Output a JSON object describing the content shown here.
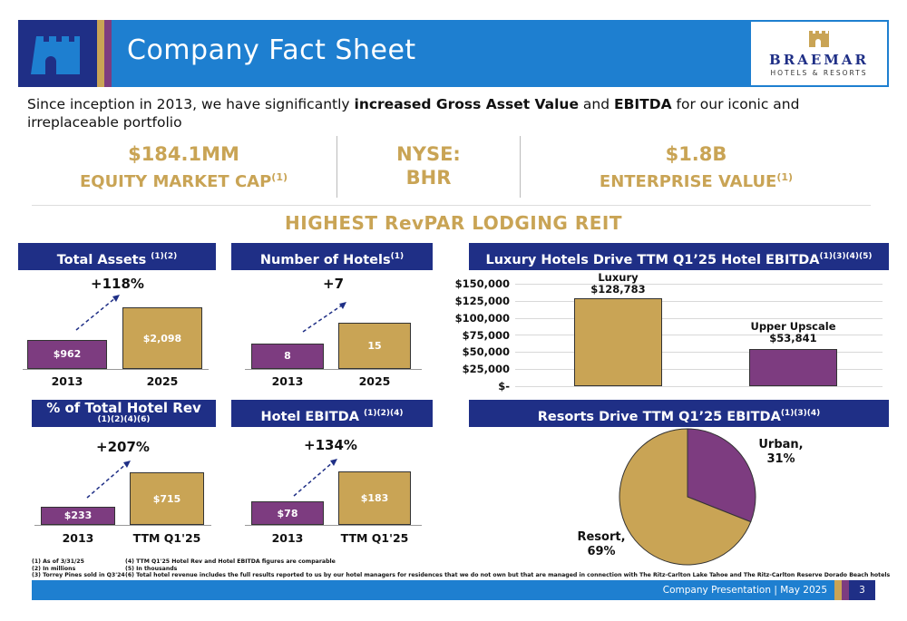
{
  "header": {
    "title": "Company Fact Sheet",
    "logo_name": "BRAEMAR",
    "logo_sub": "HOTELS & RESORTS",
    "colors": {
      "navy": "#1f2f86",
      "blue": "#1e7fd0",
      "gold": "#c9a455",
      "purple": "#7d3c80"
    }
  },
  "intro": {
    "part1": "Since inception in 2013, we have significantly ",
    "bold1": "increased Gross Asset Value",
    "part2": " and ",
    "bold2": "EBITDA",
    "part3": " for our iconic and irreplaceable portfolio"
  },
  "stats": {
    "market_cap_value": "$184.1MM",
    "market_cap_label": "EQUITY MARKET CAP",
    "market_cap_note": "(1)",
    "ticker_line1": "NYSE:",
    "ticker_line2": "BHR",
    "ev_value": "$1.8B",
    "ev_label": "ENTERPRISE VALUE",
    "ev_note": "(1)"
  },
  "highlight": "HIGHEST RevPAR LODGING REIT",
  "panels": {
    "total_assets": {
      "title": "Total Assets ",
      "note": "(1)(2)",
      "growth": "+118%",
      "cat1": "2013",
      "cat2": "2025",
      "val1": "$962",
      "val2": "$2,098"
    },
    "hotels": {
      "title": "Number of Hotels",
      "note": "(1)",
      "growth": "+7",
      "cat1": "2013",
      "cat2": "2025",
      "val1": "8",
      "val2": "15"
    },
    "hotel_rev": {
      "title": "% of Total Hotel Rev",
      "note": "(1)(2)(4)(6)",
      "growth": "+207%",
      "cat1": "2013",
      "cat2": "TTM Q1'25",
      "val1": "$233",
      "val2": "$715"
    },
    "ebitda": {
      "title": "Hotel EBITDA ",
      "note": "(1)(2)(4)",
      "growth": "+134%",
      "cat1": "2013",
      "cat2": "TTM Q1'25",
      "val1": "$78",
      "val2": "$183"
    },
    "luxury": {
      "title": "Luxury Hotels Drive TTM Q1’25 Hotel EBITDA",
      "note": "(1)(3)(4)(5)"
    },
    "resorts": {
      "title": "Resorts Drive TTM Q1’25 EBITDA",
      "note": "(1)(3)(4)"
    }
  },
  "chart_data": [
    {
      "type": "bar",
      "title": "Total Assets",
      "categories": [
        "2013",
        "2025"
      ],
      "values": [
        962,
        2098
      ]
    },
    {
      "type": "bar",
      "title": "Number of Hotels",
      "categories": [
        "2013",
        "2025"
      ],
      "values": [
        8,
        15
      ]
    },
    {
      "type": "bar",
      "title": "% of Total Hotel Rev",
      "categories": [
        "2013",
        "TTM Q1'25"
      ],
      "values": [
        233,
        715
      ]
    },
    {
      "type": "bar",
      "title": "Hotel EBITDA",
      "categories": [
        "2013",
        "TTM Q1'25"
      ],
      "values": [
        78,
        183
      ]
    },
    {
      "type": "bar",
      "title": "Luxury Hotels Drive TTM Q1’25 Hotel EBITDA",
      "categories": [
        "Luxury",
        "Upper Upscale"
      ],
      "values": [
        128783,
        53841
      ],
      "value_labels": [
        "$128,783",
        "$53,841"
      ],
      "ylim": [
        0,
        150000
      ],
      "yticks": [
        "$150,000",
        "$125,000",
        "$100,000",
        "$75,000",
        "$50,000",
        "$25,000",
        "$-"
      ],
      "grid": true
    },
    {
      "type": "pie",
      "title": "Resorts Drive TTM Q1’25 EBITDA",
      "labels": [
        "Urban",
        "Resort"
      ],
      "values": [
        31,
        69
      ],
      "value_labels": [
        "31%",
        "69%"
      ]
    }
  ],
  "footnotes": {
    "col1": [
      "(1) As of 3/31/25",
      "(2) In millions",
      "(3) Torrey Pines sold in Q3'24"
    ],
    "col2": [
      "(4) TTM Q1'25 Hotel Rev and Hotel EBITDA figures are comparable",
      "(5) In thousands",
      "(6) Total hotel revenue includes the full results reported to us by our hotel managers for residences that we do not own but that are managed in connection with The Ritz-Carlton Lake Tahoe and The Ritz-Carlton Reserve Dorado Beach hotels"
    ]
  },
  "footer": {
    "text": "Company Presentation | May 2025",
    "page": "3"
  }
}
